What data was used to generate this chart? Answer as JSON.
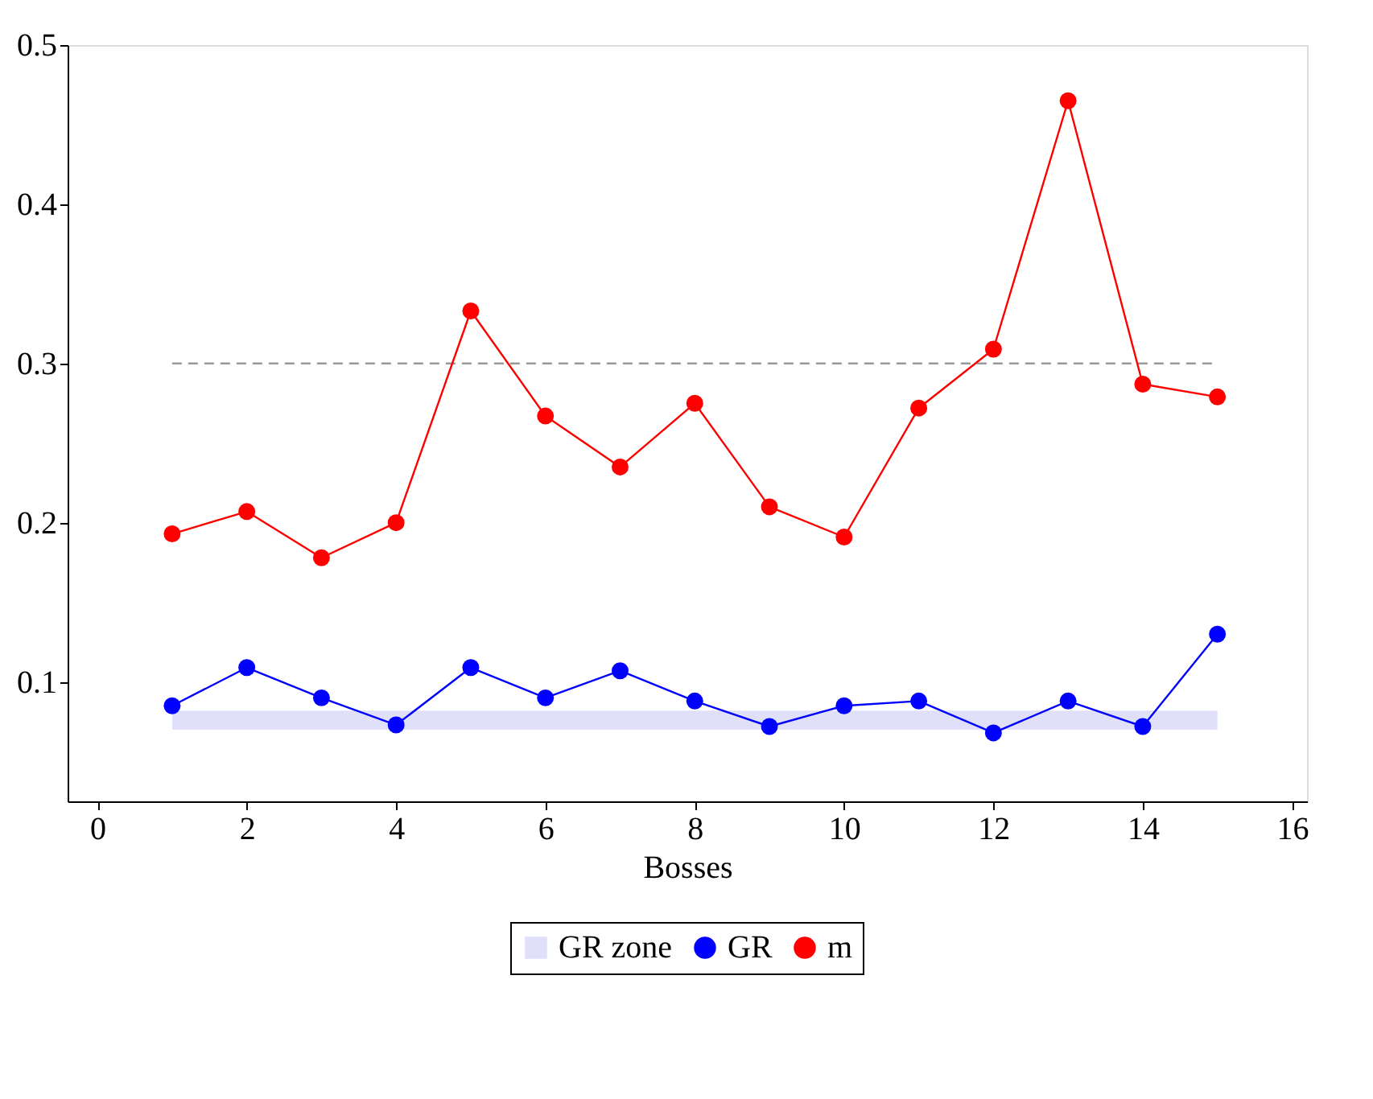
{
  "chart_data": {
    "type": "line",
    "xlabel": "Bosses",
    "x": [
      1,
      2,
      3,
      4,
      5,
      6,
      7,
      8,
      9,
      10,
      11,
      12,
      13,
      14,
      15
    ],
    "series": [
      {
        "name": "GR",
        "color": "#0000ff",
        "values": [
          0.085,
          0.109,
          0.09,
          0.073,
          0.109,
          0.09,
          0.107,
          0.088,
          0.072,
          0.085,
          0.088,
          0.068,
          0.088,
          0.072,
          0.13
        ]
      },
      {
        "name": "m",
        "color": "#ff0000",
        "values": [
          0.193,
          0.207,
          0.178,
          0.2,
          0.333,
          0.267,
          0.235,
          0.275,
          0.21,
          0.191,
          0.272,
          0.309,
          0.465,
          0.287,
          0.279
        ]
      }
    ],
    "bands": [
      {
        "axis": "y",
        "from": 0.07,
        "to": 0.082,
        "label": "GR zone",
        "color": "#e0e0fa"
      }
    ],
    "ref_lines": [
      {
        "axis": "y",
        "value": 0.3,
        "color": "#999999",
        "line_style": "dashed"
      }
    ],
    "xlim": [
      -0.4,
      16.2
    ],
    "xticks": [
      0,
      2,
      4,
      6,
      8,
      10,
      12,
      14,
      16
    ],
    "ylim": [
      0.025,
      0.5
    ],
    "yticks": [
      0.1,
      0.2,
      0.3,
      0.4,
      0.5
    ],
    "marker": "circle",
    "line_style": "solid",
    "grid": false,
    "legend": "bottom"
  }
}
